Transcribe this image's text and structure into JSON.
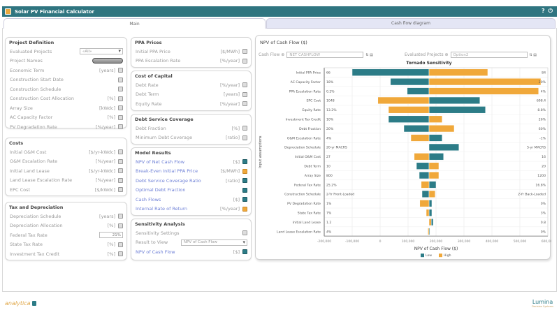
{
  "app": {
    "title": "Solar PV Financial Calculator",
    "help_icon": "?",
    "power_icon": "⏻"
  },
  "tabs": [
    {
      "label": "Main",
      "active": true
    },
    {
      "label": "Cash flow diagram",
      "active": false
    }
  ],
  "project_definition": {
    "title": "Project Definition",
    "evaluated_projects_label": "Evaluated Projects",
    "evaluated_projects_value": "«All»",
    "project_names_label": "Project Names",
    "rows": [
      {
        "label": "Economic Term",
        "unit": "[years]"
      },
      {
        "label": "Construction Start Date",
        "unit": ""
      },
      {
        "label": "Construction Schedule",
        "unit": ""
      },
      {
        "label": "Construction Cost Allocation",
        "unit": "[%]"
      },
      {
        "label": "Array Size",
        "unit": "[kWdc]"
      },
      {
        "label": "AC Capacity Factor",
        "unit": "[%]"
      },
      {
        "label": "PV Degradation Rate",
        "unit": "[%/year]"
      }
    ]
  },
  "costs": {
    "title": "Costs",
    "rows": [
      {
        "label": "Initial O&M Cost",
        "unit": "[$/yr-kWdc]"
      },
      {
        "label": "O&M Escalation Rate",
        "unit": "[%/year]"
      },
      {
        "label": "Initial Land Lease",
        "unit": "[$/yr-kWdc]"
      },
      {
        "label": "Land Lease Escalation Rate",
        "unit": "[%/year]"
      },
      {
        "label": "EPC Cost",
        "unit": "[$/kWdc]"
      }
    ]
  },
  "tax": {
    "title": "Tax and Depreciation",
    "rows": [
      {
        "label": "Depreciation Schedule",
        "unit": "[years]"
      },
      {
        "label": "Depreciation Allocation",
        "unit": "[%]"
      },
      {
        "label": "Federal Tax Rate",
        "unit": "",
        "value": "21%"
      },
      {
        "label": "State Tax Rate",
        "unit": "[%]"
      },
      {
        "label": "Investment Tax Credit",
        "unit": "[%]"
      }
    ]
  },
  "ppa": {
    "title": "PPA Prices",
    "rows": [
      {
        "label": "Initial PPA Price",
        "unit": "[$/MWh]"
      },
      {
        "label": "PPA Escalation Rate",
        "unit": "[%/year]"
      }
    ]
  },
  "capital": {
    "title": "Cost of Capital",
    "rows": [
      {
        "label": "Debt Rate",
        "unit": "[%/year]"
      },
      {
        "label": "Debt Term",
        "unit": "[years]"
      },
      {
        "label": "Equity Rate",
        "unit": "[%/year]"
      }
    ]
  },
  "debt": {
    "title": "Debt Service Coverage",
    "rows": [
      {
        "label": "Debt Fraction",
        "unit": "[%]"
      },
      {
        "label": "Minimum Debt Coverage",
        "unit": "[ratio]"
      }
    ]
  },
  "results": {
    "title": "Model Results",
    "rows": [
      {
        "label": "NPV of Net Cash Flow",
        "unit": "[$]",
        "icon": "teal"
      },
      {
        "label": "Break-Even Initial PPA Price",
        "unit": "[$/MWh]",
        "icon": "orange"
      },
      {
        "label": "Debt Service Coverage Ratio",
        "unit": "[ratio]",
        "icon": "teal"
      },
      {
        "label": "Optimal Debt Fraction",
        "unit": "",
        "icon": "teal"
      },
      {
        "label": "Cash Flows",
        "unit": "[$]",
        "icon": "teal"
      },
      {
        "label": "Internal Rate of Return",
        "unit": "[%/year]",
        "icon": "orange"
      }
    ]
  },
  "sensitivity": {
    "title": "Sensitivity Analysis",
    "settings_label": "Sensitivity Settings",
    "result_label": "Result to View",
    "result_value": "NPV of Cash Flow",
    "npv_label": "NPV of Cash Flow",
    "npv_unit": "[$]"
  },
  "chart_panel": {
    "title": "NPV of Cash Flow ($)",
    "cash_flow_label": "Cash Flow ⊕",
    "cash_flow_value": "NET CASHFLOW",
    "evaluated_label": "Evaluated Projects ⊕",
    "evaluated_value": "Option2",
    "mini_icons": "⇅ ▤"
  },
  "chart_data": {
    "type": "bar",
    "subtype": "tornado",
    "title": "Tornado Sensitivity",
    "xlabel": "NPV of Cash Flow ($)",
    "ylabel": "Input assumptions",
    "xlim": [
      -200000,
      600000
    ],
    "xticks": [
      "-200,000",
      "-100,000",
      "0",
      "100,000",
      "200,000",
      "300,000",
      "400,000",
      "500,000",
      "600,000"
    ],
    "xtick_values": [
      -200000,
      -100000,
      0,
      100000,
      200000,
      300000,
      400000,
      500000,
      600000
    ],
    "baseline": 175000,
    "grid": true,
    "legend": {
      "position": "bottom",
      "entries": [
        {
          "name": "Low",
          "color": "#2c7c87"
        },
        {
          "name": "High",
          "color": "#f0a83a"
        }
      ]
    },
    "rows": [
      {
        "name": "Initial PPA Price",
        "low_label": "66",
        "high_label": "84",
        "low": -100000,
        "high": 385000
      },
      {
        "name": "AC Capacity Factor",
        "low_label": "18%",
        "high_label": "20%",
        "low": 37000,
        "high": 575000
      },
      {
        "name": "PPA Escalation Rate",
        "low_label": "0.2%",
        "high_label": "4%",
        "low": 97000,
        "high": 567000
      },
      {
        "name": "EPC Cost",
        "low_label": "1048",
        "high_label": "698.4",
        "low": 357000,
        "high": -8000
      },
      {
        "name": "Equity Rate",
        "low_label": "13.2%",
        "high_label": "8.8%",
        "low": 377000,
        "high": 30000
      },
      {
        "name": "Investment Tax Credit",
        "low_label": "10%",
        "high_label": "26%",
        "low": 30000,
        "high": 222000
      },
      {
        "name": "Debt Fraction",
        "low_label": "20%",
        "high_label": "60%",
        "low": 85000,
        "high": 265000
      },
      {
        "name": "O&M Escalation Rate",
        "low_label": "4%",
        "high_label": "-1%",
        "low": 222000,
        "high": 110000
      },
      {
        "name": "Depreciation Schedule",
        "low_label": "20-yr MACRS",
        "high_label": "5-yr MACRS",
        "low": 282000,
        "high": 175000
      },
      {
        "name": "Initial O&M Cost",
        "low_label": "27",
        "high_label": "16",
        "low": 227000,
        "high": 122000
      },
      {
        "name": "Debt Term",
        "low_label": "10",
        "high_label": "20",
        "low": 130000,
        "high": 210000
      },
      {
        "name": "Array Size",
        "low_label": "800",
        "high_label": "1200",
        "low": 140000,
        "high": 210000
      },
      {
        "name": "Federal Tax Rate",
        "low_label": "25.2%",
        "high_label": "16.8%",
        "low": 200000,
        "high": 147000
      },
      {
        "name": "Construction Schedule",
        "low_label": "2-Yr Front-Loaded",
        "high_label": "2-Yr Back-Loaded",
        "low": 150000,
        "high": 197000
      },
      {
        "name": "PV Degradation Rate",
        "low_label": "1%",
        "high_label": "0%",
        "low": 185000,
        "high": 142000
      },
      {
        "name": "State Tax Rate",
        "low_label": "7%",
        "high_label": "3%",
        "low": 185000,
        "high": 165000
      },
      {
        "name": "Initial Land Lease",
        "low_label": "1.2",
        "high_label": "0.8",
        "low": 190000,
        "high": 183000
      },
      {
        "name": "Land Lease Escalation Rate",
        "low_label": "4%",
        "high_label": "0%",
        "low": 178000,
        "high": 171000
      }
    ]
  },
  "footer": {
    "left_logo": "analytica",
    "right_logo": "Lumina",
    "right_sub": "Decision Systems"
  }
}
